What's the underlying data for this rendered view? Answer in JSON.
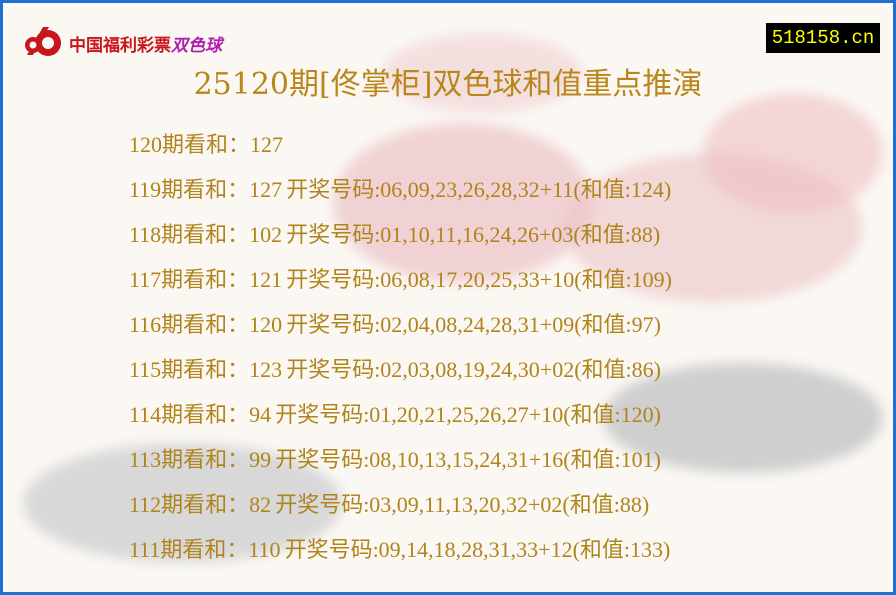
{
  "header": {
    "logo_text": "中国福利彩票",
    "logo_game": "双色球",
    "site": "518158.cn",
    "title": "25120期[佟掌柜]双色球和值重点推演"
  },
  "rows": [
    {
      "label": "120期看和：127",
      "draw": ""
    },
    {
      "label": "119期看和：127",
      "draw": "开奖号码:06,09,23,26,28,32+11(和值:124)"
    },
    {
      "label": "118期看和：102",
      "draw": "开奖号码:01,10,11,16,24,26+03(和值:88)"
    },
    {
      "label": "117期看和：121",
      "draw": "开奖号码:06,08,17,20,25,33+10(和值:109)"
    },
    {
      "label": "116期看和：120",
      "draw": "开奖号码:02,04,08,24,28,31+09(和值:97)"
    },
    {
      "label": "115期看和：123",
      "draw": "开奖号码:02,03,08,19,24,30+02(和值:86)"
    },
    {
      "label": "114期看和：94",
      "draw": "开奖号码:01,20,21,25,26,27+10(和值:120)"
    },
    {
      "label": "113期看和：99",
      "draw": "开奖号码:08,10,13,15,24,31+16(和值:101)"
    },
    {
      "label": "112期看和：82",
      "draw": "开奖号码:03,09,11,13,20,32+02(和值:88)"
    },
    {
      "label": "111期看和：110",
      "draw": "开奖号码:09,14,18,28,31,33+12(和值:133)"
    }
  ],
  "colors": {
    "border": "#1f6fd6",
    "text": "#b0841c",
    "logo_red": "#c8161d",
    "site_text": "#ffff00"
  }
}
